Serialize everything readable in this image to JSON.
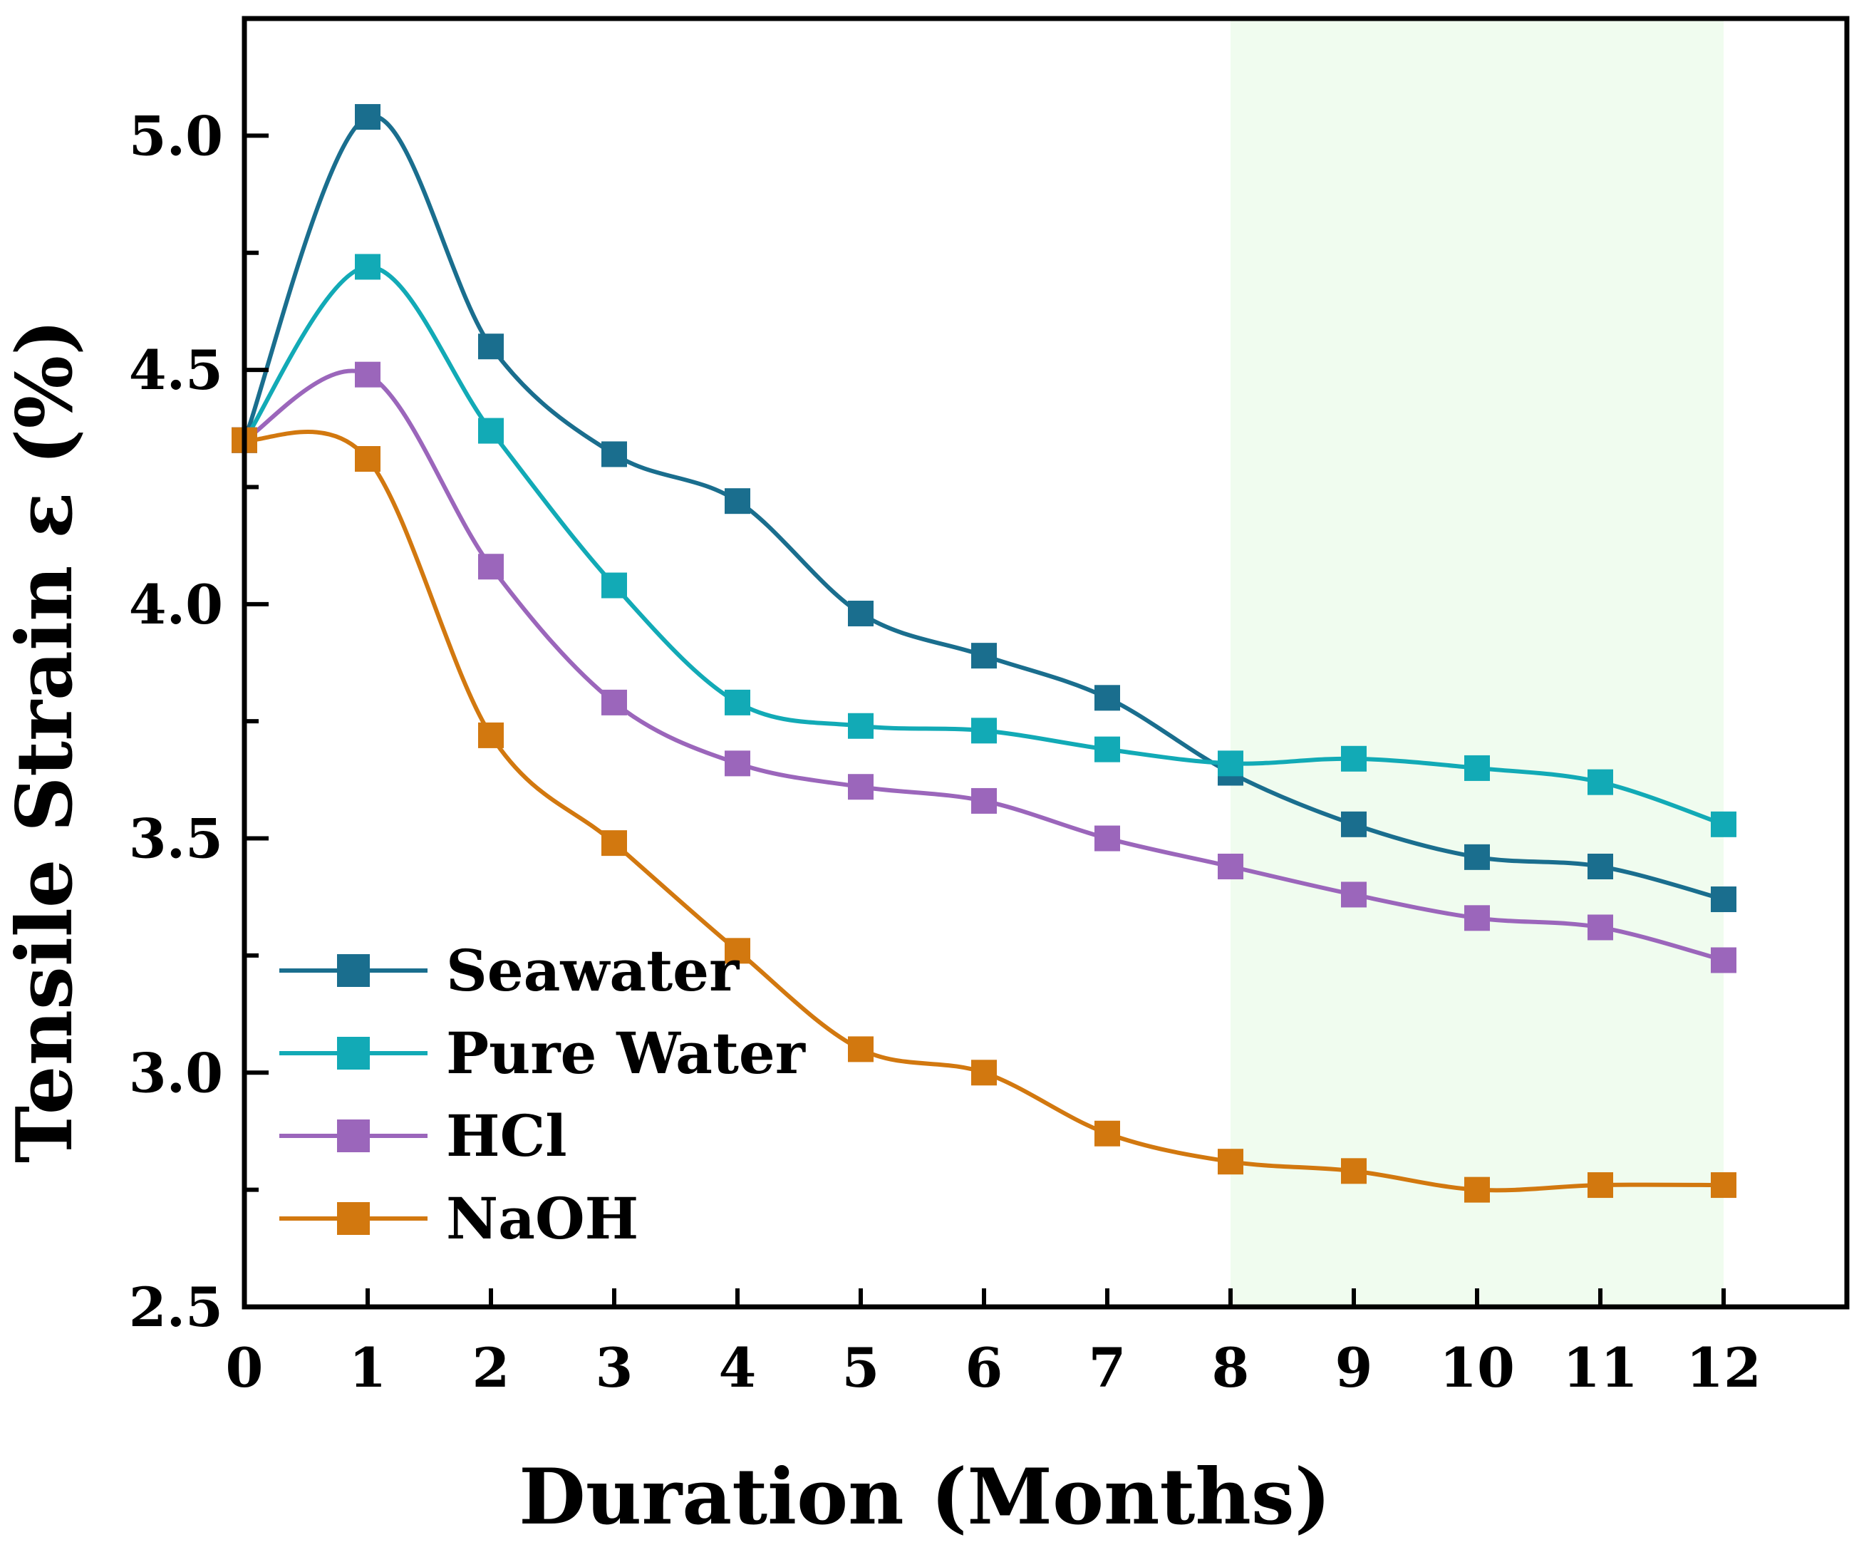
{
  "chart_data": {
    "type": "line",
    "title": "",
    "xlabel": "Duration (Months)",
    "ylabel": "Tensile Strain ε (%)",
    "xlim": [
      0,
      13
    ],
    "ylim": [
      2.5,
      5.25
    ],
    "xticks": [
      0,
      1,
      2,
      3,
      4,
      5,
      6,
      7,
      8,
      9,
      10,
      11,
      12
    ],
    "xtick_labels": [
      "0",
      "1",
      "2",
      "3",
      "4",
      "5",
      "6",
      "7",
      "8",
      "9",
      "10",
      "11",
      "12"
    ],
    "yticks": [
      2.5,
      3.0,
      3.5,
      4.0,
      4.5,
      5.0
    ],
    "ytick_labels": [
      "2.5",
      "3.0",
      "3.5",
      "4.0",
      "4.5",
      "5.0"
    ],
    "y_minor_ticks": [
      2.75,
      3.25,
      3.75,
      4.25,
      4.75
    ],
    "highlight_region": {
      "x": [
        8,
        12
      ],
      "color": "#f0fcef"
    },
    "legend_position": "lower-left",
    "x": [
      0,
      1,
      2,
      3,
      4,
      5,
      6,
      7,
      8,
      9,
      10,
      11,
      12
    ],
    "series": [
      {
        "name": "Seawater",
        "color": "#1a6e8e",
        "values": [
          4.35,
          5.04,
          4.55,
          4.32,
          4.22,
          3.98,
          3.89,
          3.8,
          3.64,
          3.53,
          3.46,
          3.44,
          3.37
        ]
      },
      {
        "name": "Pure Water",
        "color": "#12aab6",
        "values": [
          4.35,
          4.72,
          4.37,
          4.04,
          3.79,
          3.74,
          3.73,
          3.69,
          3.66,
          3.67,
          3.65,
          3.62,
          3.53
        ]
      },
      {
        "name": "HCl",
        "color": "#9b66bb",
        "values": [
          4.35,
          4.49,
          4.08,
          3.79,
          3.66,
          3.61,
          3.58,
          3.5,
          3.44,
          3.38,
          3.33,
          3.31,
          3.24
        ]
      },
      {
        "name": "NaOH",
        "color": "#d2780f",
        "values": [
          4.35,
          4.31,
          3.72,
          3.49,
          3.26,
          3.05,
          3.0,
          2.87,
          2.81,
          2.79,
          2.75,
          2.76,
          2.76
        ]
      }
    ]
  }
}
